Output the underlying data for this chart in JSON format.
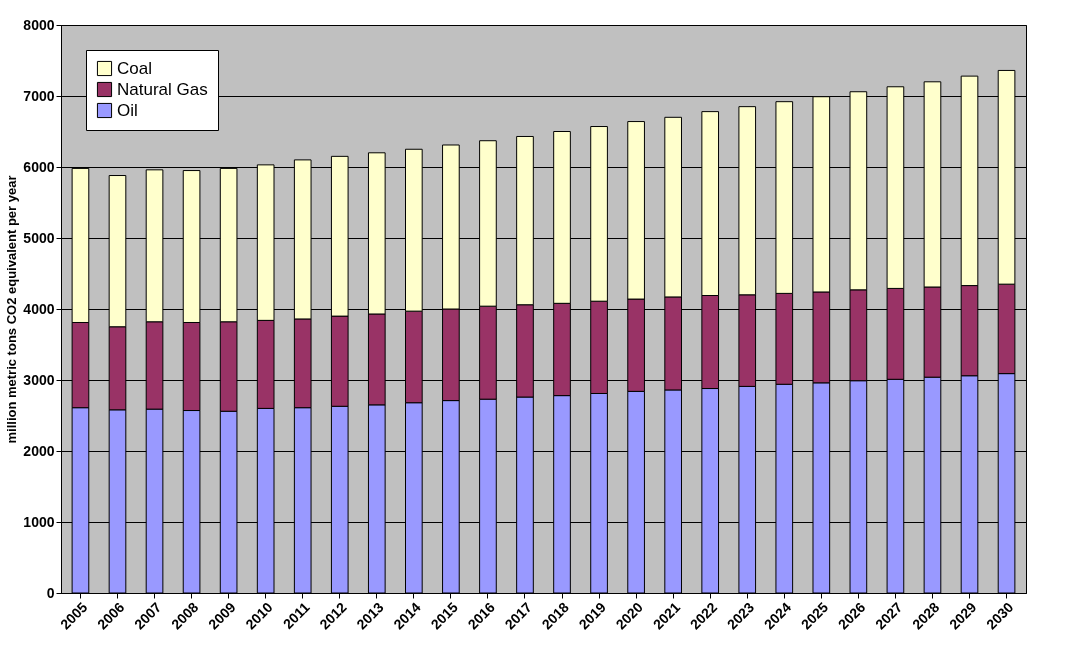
{
  "chart_data": {
    "type": "bar",
    "stacked": true,
    "ylabel": "million metric tons CO2 equivalent per year",
    "categories": [
      "2005",
      "2006",
      "2007",
      "2008",
      "2009",
      "2010",
      "2011",
      "2012",
      "2013",
      "2014",
      "2015",
      "2016",
      "2017",
      "2018",
      "2019",
      "2020",
      "2021",
      "2022",
      "2023",
      "2024",
      "2025",
      "2026",
      "2027",
      "2028",
      "2029",
      "2030"
    ],
    "series": [
      {
        "name": "Oil",
        "color": "#9999ff",
        "values": [
          2610,
          2580,
          2590,
          2570,
          2560,
          2600,
          2610,
          2630,
          2650,
          2680,
          2710,
          2730,
          2760,
          2780,
          2810,
          2840,
          2860,
          2880,
          2910,
          2940,
          2960,
          2990,
          3010,
          3040,
          3060,
          3090
        ]
      },
      {
        "name": "Natural Gas",
        "color": "#993366",
        "values": [
          1200,
          1170,
          1230,
          1240,
          1260,
          1240,
          1250,
          1270,
          1280,
          1290,
          1290,
          1310,
          1300,
          1300,
          1300,
          1300,
          1310,
          1310,
          1290,
          1280,
          1280,
          1280,
          1280,
          1270,
          1270,
          1260
        ]
      },
      {
        "name": "Coal",
        "color": "#ffffcc",
        "values": [
          2170,
          2130,
          2140,
          2140,
          2160,
          2190,
          2240,
          2250,
          2270,
          2280,
          2310,
          2330,
          2370,
          2420,
          2460,
          2500,
          2530,
          2590,
          2650,
          2700,
          2750,
          2790,
          2840,
          2890,
          2950,
          3010
        ]
      }
    ],
    "ylim": [
      0,
      8000
    ],
    "yticks": [
      0,
      1000,
      2000,
      3000,
      4000,
      5000,
      6000,
      7000,
      8000
    ],
    "grid": "y",
    "legend": "top left"
  }
}
